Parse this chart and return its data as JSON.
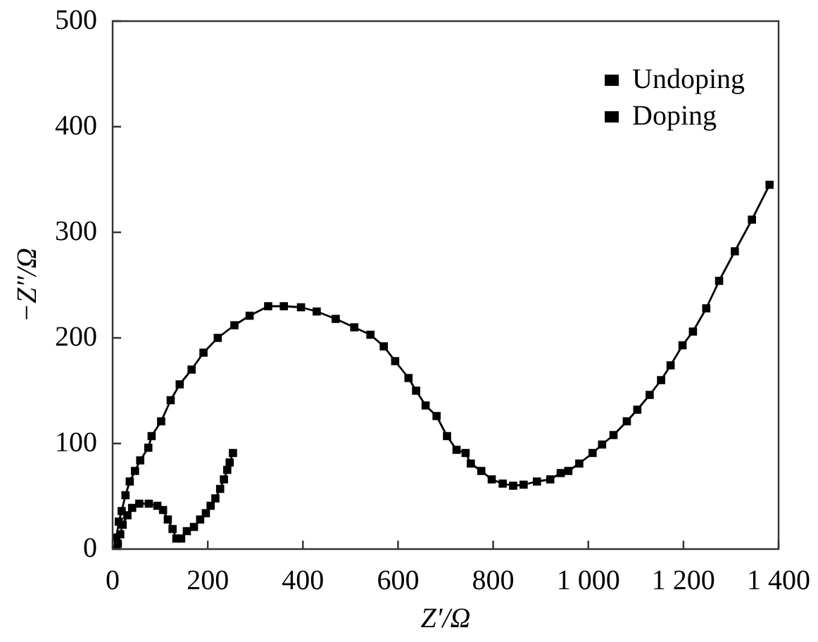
{
  "chart_data": {
    "type": "line",
    "xlabel": "Z′/Ω",
    "ylabel": "−Z″/Ω",
    "xlim": [
      0,
      1400
    ],
    "ylim": [
      0,
      500
    ],
    "xticks": [
      0,
      200,
      400,
      600,
      800,
      {
        "value": 1000,
        "label": "1 000"
      },
      {
        "value": 1200,
        "label": "1 200"
      },
      {
        "value": 1400,
        "label": "1 400"
      }
    ],
    "yticks": [
      0,
      100,
      200,
      300,
      400,
      500
    ],
    "grid": false,
    "legend": "top right",
    "marker": "square",
    "line_style": "solid",
    "series": [
      {
        "name": "Undoping",
        "color": "#000000",
        "x": [
          8,
          13,
          19,
          27,
          36,
          47,
          58,
          75,
          82,
          102,
          122,
          141,
          166,
          191,
          221,
          256,
          288,
          327,
          360,
          396,
          429,
          469,
          508,
          542,
          570,
          594,
          622,
          638,
          658,
          681,
          703,
          723,
          742,
          753,
          775,
          797,
          820,
          842,
          864,
          892,
          920,
          942,
          958,
          981,
          1009,
          1029,
          1053,
          1081,
          1103,
          1129,
          1153,
          1173,
          1198,
          1220,
          1248,
          1275,
          1308,
          1344,
          1381
        ],
        "values": [
          11,
          26,
          36,
          51,
          64,
          74,
          84,
          96,
          107,
          121,
          141,
          156,
          170,
          186,
          200,
          212,
          221,
          230,
          230,
          229,
          225,
          218,
          210,
          203,
          192,
          178,
          162,
          150,
          136,
          126,
          107,
          94,
          91,
          81,
          74,
          66,
          62,
          60,
          61,
          64,
          66,
          72,
          74,
          81,
          91,
          99,
          108,
          121,
          132,
          146,
          160,
          174,
          193,
          206,
          228,
          254,
          282,
          312,
          345
        ]
      },
      {
        "name": "Doping",
        "color": "#000000",
        "x": [
          8,
          11,
          16,
          21,
          31,
          41,
          56,
          76,
          94,
          106,
          116,
          126,
          134,
          144,
          156,
          171,
          184,
          196,
          206,
          216,
          226,
          234,
          241,
          246,
          253
        ],
        "values": [
          0,
          5,
          14,
          23,
          32,
          39,
          43,
          43,
          41,
          37,
          28,
          19,
          10,
          10,
          17,
          21,
          28,
          34,
          41,
          48,
          57,
          66,
          75,
          82,
          91
        ]
      }
    ]
  }
}
